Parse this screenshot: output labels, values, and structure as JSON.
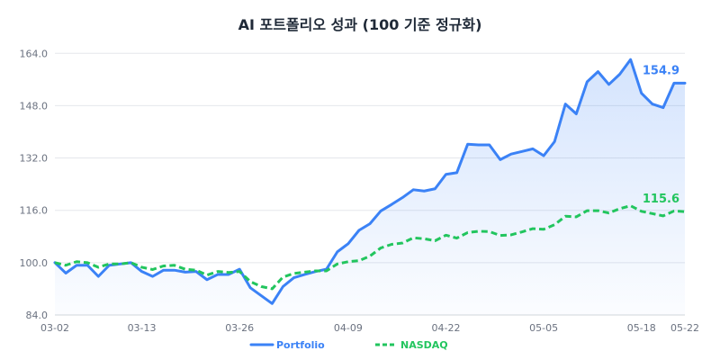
{
  "chart_data": {
    "type": "line",
    "title": "AI 포트폴리오 성과 (100 기준 정규화)",
    "xlabel": "",
    "ylabel": "",
    "ylim": [
      84,
      166
    ],
    "yticks": [
      "84.0",
      "100.0",
      "116.0",
      "132.0",
      "148.0",
      "164.0"
    ],
    "ytick_values": [
      84,
      100,
      116,
      132,
      148,
      164
    ],
    "xtick_labels": [
      "03-02",
      "03-13",
      "03-26",
      "04-09",
      "04-22",
      "05-05",
      "05-18",
      "05-22"
    ],
    "xtick_index": [
      0,
      8,
      17,
      27,
      36,
      45,
      54,
      58
    ],
    "grid": true,
    "legend_position": "bottom",
    "series": [
      {
        "name": "Portfolio",
        "color": "#3b82f6",
        "end_label": "154.9",
        "area_fill": true,
        "values": [
          100.0,
          96.8,
          99.2,
          99.2,
          95.8,
          99.2,
          99.6,
          100.0,
          97.3,
          95.8,
          97.7,
          97.7,
          97.1,
          97.3,
          94.8,
          96.4,
          96.4,
          98.0,
          92.3,
          89.9,
          87.5,
          92.7,
          95.4,
          96.4,
          97.3,
          98.0,
          103.3,
          105.8,
          109.9,
          111.9,
          115.8,
          117.8,
          119.9,
          122.3,
          121.9,
          122.6,
          127.0,
          127.5,
          136.2,
          136.0,
          136.0,
          131.5,
          133.2,
          134.0,
          134.8,
          132.7,
          137.0,
          148.5,
          145.5,
          155.3,
          158.4,
          154.5,
          157.6,
          162.1,
          151.8,
          148.5,
          147.4,
          154.9,
          154.9
        ]
      },
      {
        "name": "NASDAQ",
        "color": "#22c55e",
        "end_label": "115.6",
        "dashed": true,
        "values": [
          100.0,
          99.2,
          100.3,
          100.0,
          98.6,
          99.6,
          99.6,
          100.0,
          98.6,
          97.9,
          99.0,
          99.2,
          98.0,
          97.7,
          96.2,
          97.3,
          97.0,
          97.3,
          94.2,
          92.7,
          92.0,
          95.6,
          96.7,
          97.1,
          97.5,
          97.5,
          99.6,
          100.3,
          100.6,
          102.0,
          104.5,
          105.6,
          106.0,
          107.6,
          107.3,
          106.7,
          108.4,
          107.5,
          109.2,
          109.6,
          109.5,
          108.3,
          108.5,
          109.4,
          110.4,
          110.2,
          111.6,
          114.2,
          114.0,
          115.9,
          115.9,
          115.2,
          116.5,
          117.4,
          115.7,
          115.0,
          114.3,
          115.8,
          115.6
        ]
      }
    ]
  }
}
